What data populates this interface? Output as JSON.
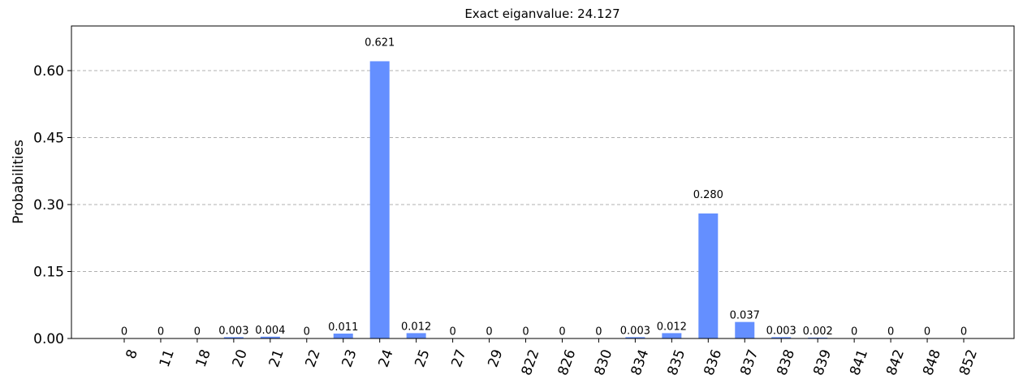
{
  "chart_data": {
    "type": "bar",
    "title": "Exact eiganvalue: 24.127",
    "xlabel": "",
    "ylabel": "Probabilities",
    "ylim": [
      0,
      0.7
    ],
    "yticks": [
      0.0,
      0.15,
      0.3,
      0.45,
      0.6
    ],
    "ytick_labels": [
      "0.00",
      "0.15",
      "0.30",
      "0.45",
      "0.60"
    ],
    "grid": "y-dashed",
    "bar_color": "#648fff",
    "categories": [
      "8",
      "11",
      "18",
      "20",
      "21",
      "22",
      "23",
      "24",
      "25",
      "27",
      "29",
      "822",
      "826",
      "830",
      "834",
      "835",
      "836",
      "837",
      "838",
      "839",
      "841",
      "842",
      "848",
      "852"
    ],
    "values": [
      0.0005,
      0.0005,
      0.0005,
      0.003,
      0.004,
      0.0005,
      0.011,
      0.621,
      0.012,
      0.0005,
      0.0005,
      0.0005,
      0.0005,
      0.0005,
      0.003,
      0.012,
      0.28,
      0.037,
      0.003,
      0.002,
      0.0005,
      0.0005,
      0.0005,
      0.0005
    ],
    "data_labels": [
      "0",
      "0",
      "0",
      "0.003",
      "0.004",
      "0",
      "0.011",
      "0.621",
      "0.012",
      "0",
      "0",
      "0",
      "0",
      "0",
      "0.003",
      "0.012",
      "0.280",
      "0.037",
      "0.003",
      "0.002",
      "0",
      "0",
      "0",
      "0"
    ]
  }
}
